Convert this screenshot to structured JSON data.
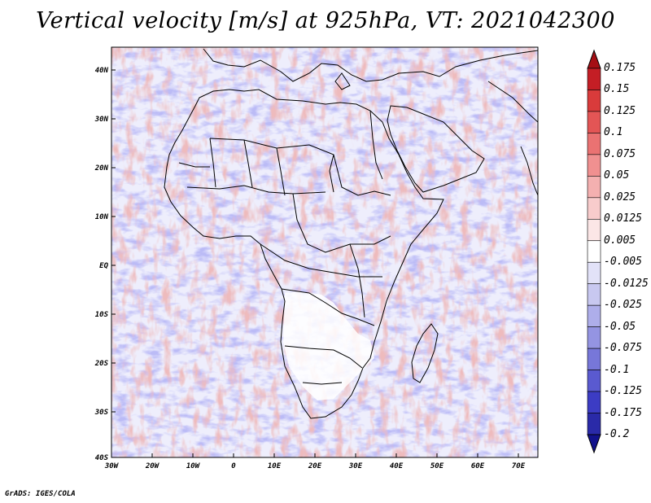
{
  "title": "Vertical velocity [m/s] at 925hPa, VT: 2021042300",
  "credit": "GrADS: IGES/COLA",
  "lon_labels": [
    "30W",
    "20W",
    "10W",
    "0",
    "10E",
    "20E",
    "30E",
    "40E",
    "50E",
    "60E",
    "70E"
  ],
  "lat_labels": [
    "40N",
    "30N",
    "20N",
    "10N",
    "EQ",
    "10S",
    "20S",
    "30S",
    "40S"
  ],
  "colorbar": {
    "labels": [
      "0.175",
      "0.15",
      "0.125",
      "0.1",
      "0.075",
      "0.05",
      "0.025",
      "0.0125",
      "0.005",
      "-0.005",
      "-0.0125",
      "-0.025",
      "-0.05",
      "-0.075",
      "-0.1",
      "-0.125",
      "-0.175",
      "-0.2"
    ],
    "colors": [
      "#a50f15",
      "#c41e25",
      "#d93b3b",
      "#e35555",
      "#ea7272",
      "#f09090",
      "#f4b0b0",
      "#f8cccc",
      "#fbe6e6",
      "#ffffff",
      "#e2e2f8",
      "#c8c8f0",
      "#aeaeea",
      "#9494e2",
      "#7777d9",
      "#5a5ad0",
      "#3c3cc4",
      "#2a2aa8",
      "#12128c"
    ]
  }
}
